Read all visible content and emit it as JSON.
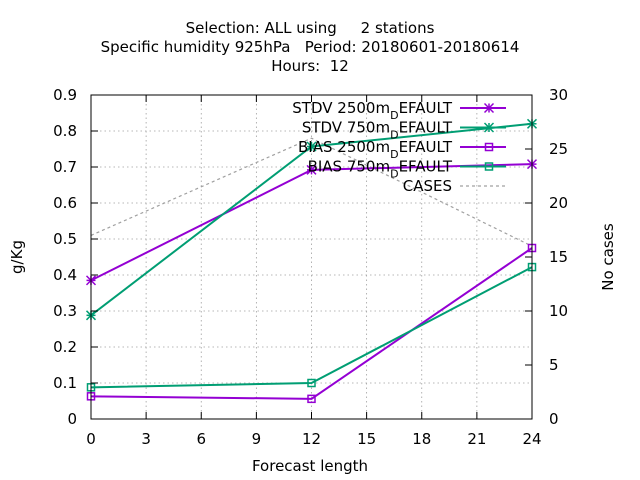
{
  "chart_data": {
    "type": "line",
    "title_lines": [
      "Selection: ALL using     2 stations",
      "Specific humidity 925hPa   Period: 20180601-20180614",
      "Hours:  12"
    ],
    "xlabel": "Forecast length",
    "ylabel": "g/Kg",
    "y2label": "No cases",
    "xlim": [
      0,
      24
    ],
    "ylim": [
      0,
      0.9
    ],
    "y2lim": [
      0,
      30
    ],
    "xticks": [
      0,
      3,
      6,
      9,
      12,
      15,
      18,
      21,
      24
    ],
    "yticks": [
      0,
      0.1,
      0.2,
      0.3,
      0.4,
      0.5,
      0.6,
      0.7,
      0.8,
      0.9
    ],
    "y2ticks": [
      0,
      5,
      10,
      15,
      20,
      25,
      30
    ],
    "grid": true,
    "legend_position": "top-right",
    "series": [
      {
        "name": "STDV 2500m",
        "name_sub": "D",
        "name_suffix": "EFAULT",
        "color": "#9400d3",
        "marker": "star",
        "axis": "y",
        "x": [
          0,
          12,
          24
        ],
        "values": [
          0.385,
          0.692,
          0.708
        ]
      },
      {
        "name": "STDV 750m",
        "name_sub": "D",
        "name_suffix": "EFAULT",
        "color": "#009e73",
        "marker": "star",
        "axis": "y",
        "x": [
          0,
          12,
          24
        ],
        "values": [
          0.288,
          0.757,
          0.82
        ]
      },
      {
        "name": "BIAS 2500m",
        "name_sub": "D",
        "name_suffix": "EFAULT",
        "color": "#9400d3",
        "marker": "square",
        "axis": "y",
        "x": [
          0,
          12,
          24
        ],
        "values": [
          0.063,
          0.056,
          0.475
        ]
      },
      {
        "name": "BIAS 750m",
        "name_sub": "D",
        "name_suffix": "EFAULT",
        "color": "#009e73",
        "marker": "square",
        "axis": "y",
        "x": [
          0,
          12,
          24
        ],
        "values": [
          0.088,
          0.1,
          0.422
        ]
      },
      {
        "name": "CASES",
        "name_sub": "",
        "name_suffix": "",
        "color": "#a0a0a0",
        "marker": "none",
        "dashed": true,
        "axis": "y2",
        "x": [
          0,
          12,
          24
        ],
        "values": [
          17,
          26,
          16
        ]
      }
    ]
  }
}
